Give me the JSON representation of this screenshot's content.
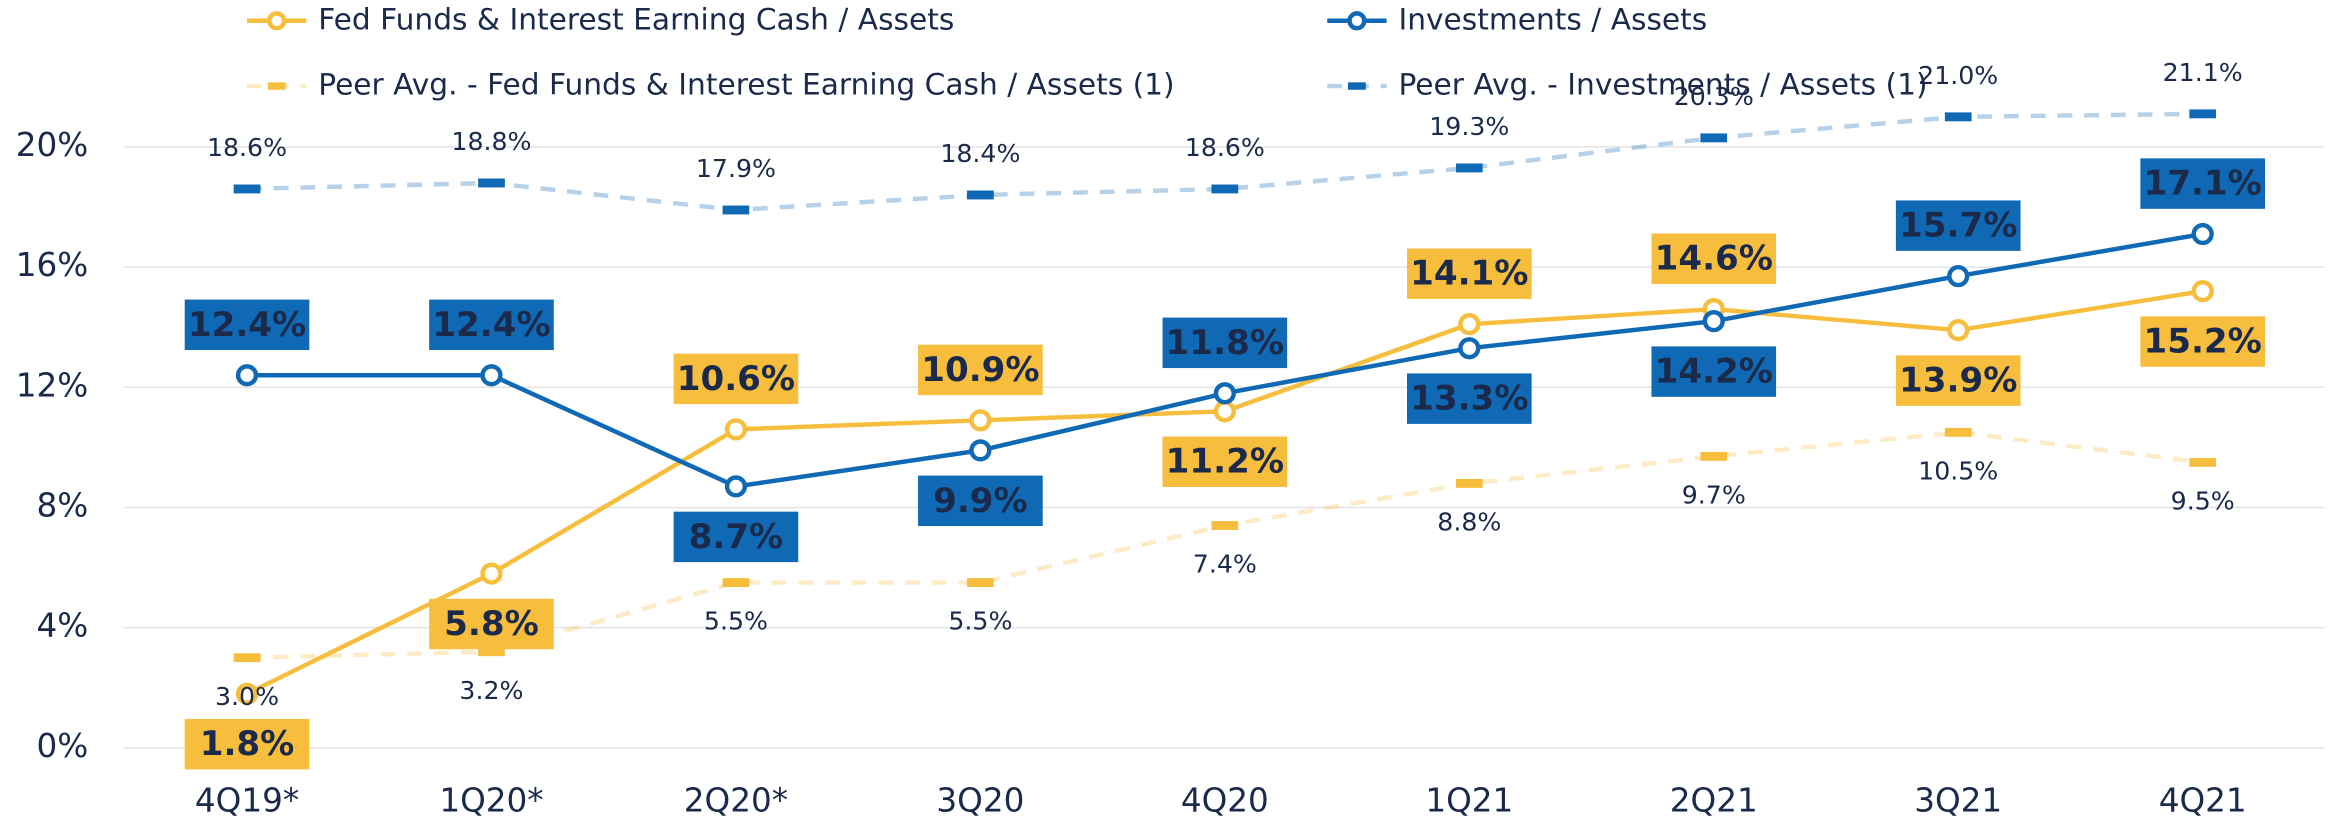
{
  "chart_data": {
    "type": "line",
    "categories": [
      "4Q19*",
      "1Q20*",
      "2Q20*",
      "3Q20",
      "4Q20",
      "1Q21",
      "2Q21",
      "3Q21",
      "4Q21"
    ],
    "series": [
      {
        "name": "Fed Funds & Interest Earning Cash / Assets",
        "color": "#F7BE3E",
        "style": "solid",
        "values": [
          1.8,
          5.8,
          10.6,
          10.9,
          11.2,
          14.1,
          14.6,
          13.9,
          15.2
        ],
        "value_labels": [
          "1.8%",
          "5.8%",
          "10.6%",
          "10.9%",
          "11.2%",
          "14.1%",
          "14.6%",
          "13.9%",
          "15.2%"
        ]
      },
      {
        "name": "Investments / Assets",
        "color": "#1069B4",
        "style": "solid",
        "values": [
          12.4,
          12.4,
          8.7,
          9.9,
          11.8,
          13.3,
          14.2,
          15.7,
          17.1
        ],
        "value_labels": [
          "12.4%",
          "12.4%",
          "8.7%",
          "9.9%",
          "11.8%",
          "13.3%",
          "14.2%",
          "15.7%",
          "17.1%"
        ]
      },
      {
        "name": "Peer Avg. - Fed Funds & Interest Earning Cash / Assets (1)",
        "color": "#F7BE3E",
        "style": "dashed",
        "values": [
          3.0,
          3.2,
          5.5,
          5.5,
          7.4,
          8.8,
          9.7,
          10.5,
          9.5
        ],
        "value_labels": [
          "3.0%",
          "3.2%",
          "5.5%",
          "5.5%",
          "7.4%",
          "8.8%",
          "9.7%",
          "10.5%",
          "9.5%"
        ]
      },
      {
        "name": "Peer Avg. - Investments / Assets (1)",
        "color": "#1069B4",
        "style": "dashed",
        "values": [
          18.6,
          18.8,
          17.9,
          18.4,
          18.6,
          19.3,
          20.3,
          21.0,
          21.1
        ],
        "value_labels": [
          "18.6%",
          "18.8%",
          "17.9%",
          "18.4%",
          "18.6%",
          "19.3%",
          "20.3%",
          "21.0%",
          "21.1%"
        ]
      }
    ],
    "ylim": [
      0,
      22
    ],
    "yticks": [
      {
        "value": 0,
        "label": "0%"
      },
      {
        "value": 4,
        "label": "4%"
      },
      {
        "value": 8,
        "label": "8%"
      },
      {
        "value": 12,
        "label": "12%"
      },
      {
        "value": 16,
        "label": "16%"
      },
      {
        "value": 20,
        "label": "20%"
      }
    ],
    "grid": true,
    "legend": "top"
  }
}
